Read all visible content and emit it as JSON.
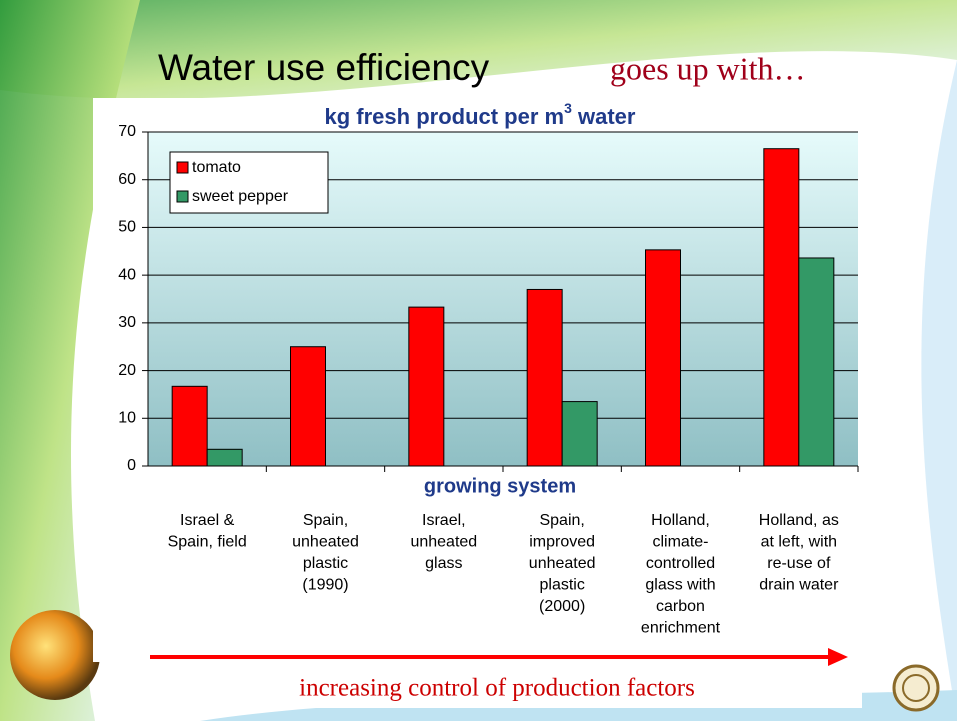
{
  "slide": {
    "title": "Water use efficiency",
    "subtitle": "goes up with…",
    "footer": "increasing control of production factors"
  },
  "chart_data": {
    "type": "bar",
    "title": [
      "kg fresh product per m",
      "3",
      " water"
    ],
    "xlabel": "growing system",
    "categories": [
      [
        "Israel &",
        "Spain, field"
      ],
      [
        "Spain,",
        "unheated",
        "plastic",
        "(1990)"
      ],
      [
        "Israel,",
        "unheated",
        "glass"
      ],
      [
        "Spain,",
        "improved",
        "unheated",
        "plastic",
        "(2000)"
      ],
      [
        "Holland,",
        "climate-",
        "controlled",
        "glass with",
        "carbon",
        "enrichment"
      ],
      [
        "Holland, as",
        "at left, with",
        "re-use of",
        "drain water"
      ]
    ],
    "series": [
      {
        "name": "tomato",
        "color": "#ff0000",
        "values": [
          16.7,
          25,
          33.3,
          37,
          45.3,
          66.5
        ]
      },
      {
        "name": "sweet pepper",
        "color": "#339966",
        "values": [
          3.5,
          null,
          null,
          13.5,
          null,
          43.6
        ]
      }
    ],
    "ylim": [
      0,
      70
    ],
    "yticks": [
      0,
      10,
      20,
      30,
      40,
      50,
      60,
      70
    ],
    "grid": true,
    "legend": "top-left"
  }
}
